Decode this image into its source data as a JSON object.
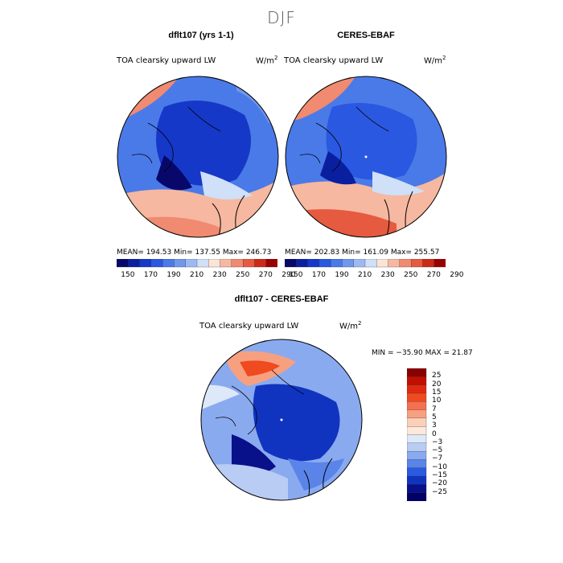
{
  "season": "DJF",
  "top_left": {
    "title": "dflt107 (yrs 1-1)",
    "variable": "TOA clearsky upward LW",
    "units_base": "W/m",
    "units_exp": "2",
    "stats": "MEAN= 194.53   Min= 137.55   Max= 246.73"
  },
  "top_right": {
    "title": "CERES-EBAF",
    "variable": "TOA clearsky upward LW",
    "units_base": "W/m",
    "units_exp": "2",
    "stats": "MEAN= 202.83   Min= 161.09   Max= 255.57"
  },
  "horiz_colorbar": {
    "ticks": [
      "150",
      "170",
      "190",
      "210",
      "230",
      "250",
      "270",
      "290"
    ],
    "colors": [
      "#08086b",
      "#0a1fa0",
      "#1638c8",
      "#2a58e0",
      "#4a7ae8",
      "#6f97ec",
      "#9db9f2",
      "#cfe0f8",
      "#fbe3d6",
      "#f6b8a0",
      "#f08a70",
      "#e65a40",
      "#cc2a18",
      "#990000"
    ]
  },
  "bottom": {
    "title": "dflt107 - CERES-EBAF",
    "variable": "TOA clearsky upward LW",
    "units_base": "W/m",
    "units_exp": "2",
    "minmax": "MIN = −35.90  MAX =   21.87"
  },
  "vert_colorbar": {
    "labels": [
      "25",
      "20",
      "15",
      "10",
      "7",
      "5",
      "3",
      "0",
      "−3",
      "−5",
      "−7",
      "−10",
      "−15",
      "−20",
      "−25"
    ],
    "colors": [
      "#8b0000",
      "#c01000",
      "#e02a10",
      "#f04a20",
      "#f57050",
      "#f7a080",
      "#fbd0b8",
      "#fde8dc",
      "#dde8f8",
      "#b8ccf4",
      "#8aaaf0",
      "#5a84e8",
      "#2a5ae0",
      "#1034c0",
      "#08108a",
      "#000066"
    ]
  }
}
